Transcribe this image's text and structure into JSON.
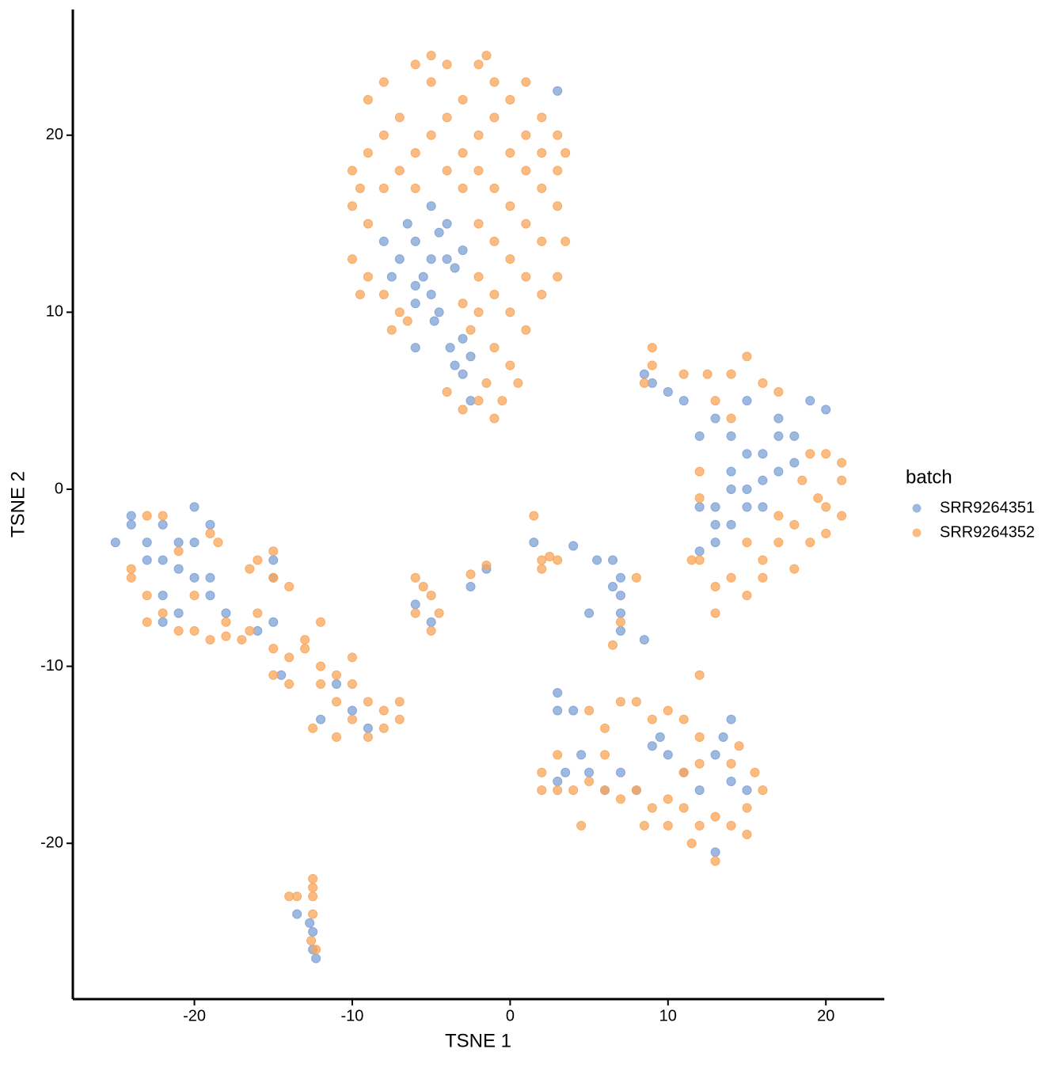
{
  "chart_data": {
    "type": "scatter",
    "xlabel": "TSNE 1",
    "ylabel": "TSNE 2",
    "legend_title": "batch",
    "legend": "right",
    "xlim": [
      -27.7,
      23.7
    ],
    "ylim": [
      -28.8,
      27.1
    ],
    "xticks": [
      -20,
      -10,
      0,
      10,
      20
    ],
    "yticks": [
      -20,
      -10,
      0,
      10,
      20
    ],
    "series": [
      {
        "name": "SRR9264351",
        "color": "#7ea1d6",
        "x": [
          -5,
          -6,
          -4,
          -5.5,
          -7,
          -6.5,
          -4.5,
          -3.5,
          -7.5,
          -5,
          -6,
          -4,
          -8,
          -3,
          -5,
          -6,
          -4.5,
          -4.8,
          -3.8,
          -3.5,
          -3,
          -3,
          -2.5,
          -6,
          -2.5,
          3,
          9,
          8.5,
          10,
          11,
          13,
          15,
          17,
          19,
          14,
          16,
          18,
          20,
          12,
          14,
          15,
          16,
          17,
          13,
          14,
          15,
          13,
          12,
          14,
          16,
          18,
          13,
          12,
          15,
          17,
          -25,
          -24,
          -23,
          -22,
          -21,
          -22,
          -20,
          -21,
          -24,
          -23,
          -20,
          -19,
          -22,
          -21,
          -22,
          -19,
          -18,
          -20,
          -19,
          -16,
          -15,
          -15,
          -14.5,
          -15,
          -11,
          -12,
          -10,
          -9,
          -2.5,
          -1.5,
          -5,
          -6,
          1.5,
          4,
          5,
          5.5,
          6.5,
          7,
          7,
          6.5,
          7,
          7,
          8.5,
          3,
          3,
          4,
          4.5,
          3,
          5,
          6,
          9,
          10,
          9.5,
          11,
          12,
          13,
          14,
          13.5,
          14,
          15,
          8,
          7,
          13,
          3.5,
          -12.5,
          -12.5,
          -12.3,
          -13.5,
          -12.7
        ],
        "values": [
          13,
          14,
          13,
          12,
          13,
          15,
          14.5,
          12.5,
          12,
          11,
          11.5,
          15,
          14,
          13.5,
          16,
          10.5,
          10,
          9.5,
          8,
          7,
          6.5,
          8.5,
          7.5,
          8,
          5,
          22.5,
          6,
          6.5,
          5.5,
          5,
          4,
          5,
          4,
          5,
          3,
          2,
          3,
          4.5,
          3,
          1,
          0,
          -1,
          1,
          -1,
          -2,
          -1,
          -3,
          -3.5,
          0,
          0.5,
          1.5,
          -2,
          -1,
          2,
          3,
          -3,
          -2,
          -3,
          -2,
          -3,
          -4,
          -3,
          -4.5,
          -1.5,
          -4,
          -5,
          -5,
          -6,
          -7,
          -7.5,
          -6,
          -7,
          -1,
          -2,
          -8,
          -4,
          -5,
          -10.5,
          -7.5,
          -11,
          -13,
          -12.5,
          -13.5,
          -5.5,
          -4.5,
          -7.5,
          -6.5,
          -3,
          -3.2,
          -7,
          -4,
          -4,
          -5,
          -6,
          -5.5,
          -7,
          -8,
          -8.5,
          -11.5,
          -12.5,
          -12.5,
          -15,
          -16.5,
          -16,
          -17,
          -14.5,
          -15,
          -14,
          -16,
          -17,
          -15,
          -16.5,
          -14,
          -13,
          -17,
          -17,
          -16,
          -20.5,
          -16,
          -25,
          -26,
          -26.5,
          -24,
          -24.5
        ]
      },
      {
        "name": "SRR9264352",
        "color": "#f9a55a",
        "x": [
          -9,
          -8,
          -7,
          -6,
          -5,
          -4,
          -3,
          -2,
          -1,
          0,
          1,
          2,
          3,
          3.5,
          -9,
          -8,
          -7,
          -6,
          -5,
          -4,
          -3,
          -2,
          -1,
          0,
          1,
          2,
          3,
          -9.5,
          -10,
          -8,
          -6,
          -4,
          -3,
          -2,
          -1,
          0,
          1,
          2,
          3.5,
          -9,
          -10,
          -9,
          -8,
          -7,
          -2,
          -1,
          0,
          1,
          2,
          3,
          -2,
          -1,
          0,
          1,
          -2,
          -1,
          0,
          -1.5,
          -2,
          -3,
          -1,
          -0.5,
          0.5,
          -4,
          -2.5,
          -3,
          -6.5,
          -7.5,
          -9.5,
          -10,
          1,
          2,
          3,
          -1.5,
          -5,
          8.5,
          9,
          9,
          11,
          12.5,
          14,
          15,
          16,
          17,
          13,
          14,
          19,
          20,
          21,
          21,
          20,
          21,
          20,
          18,
          17,
          16,
          15,
          14,
          13,
          12,
          13,
          15,
          16,
          18,
          19,
          11.5,
          12,
          12,
          17,
          18.5,
          19.5,
          -24,
          -23,
          -22,
          -21,
          -20,
          -19,
          -18,
          -17,
          -21,
          -23,
          -22,
          -19,
          -18.5,
          -16,
          -15,
          -16.5,
          -15,
          -14,
          -16,
          -15,
          -14,
          -13,
          -12,
          -11,
          -10,
          -9,
          -8,
          -7,
          -7,
          -8,
          -9,
          -10,
          -11,
          -12,
          -12.5,
          -11,
          -13,
          -12,
          -10,
          -14,
          -15,
          -16.5,
          -18,
          -20,
          -23,
          -24,
          -6,
          -5.5,
          -5,
          -6,
          -5,
          -4.5,
          -2.5,
          -1.5,
          1.5,
          2,
          2.5,
          2,
          3,
          6.5,
          7,
          8,
          3,
          2,
          2,
          3,
          4,
          5,
          6,
          7,
          8,
          9,
          10,
          11,
          12,
          13,
          14,
          15,
          16,
          15.5,
          14,
          12,
          11,
          10,
          9,
          8,
          7,
          6,
          5,
          6,
          11,
          12,
          11.5,
          13,
          12,
          4.5,
          14.5,
          10,
          8.5,
          15,
          -12.5,
          -12.5,
          -12.5,
          -13.5,
          -14,
          -12.6,
          -12.3,
          -12.5
        ],
        "values": [
          22,
          23,
          21,
          24,
          23,
          24,
          22,
          24,
          23,
          22,
          23,
          21,
          20,
          19,
          19,
          20,
          18,
          19,
          20,
          21,
          19,
          20,
          21,
          19,
          18,
          17,
          16,
          17,
          16,
          17,
          17,
          18,
          17,
          18,
          17,
          16,
          15,
          14,
          14,
          15,
          13,
          12,
          11,
          10,
          15,
          14,
          13,
          12,
          11,
          12,
          12,
          11,
          10,
          9,
          10,
          8,
          7,
          6,
          5,
          4.5,
          4,
          5,
          6,
          5.5,
          9,
          10.5,
          9.5,
          9,
          11,
          18,
          20,
          19,
          18,
          24.5,
          24.5,
          6,
          7,
          8,
          6.5,
          6.5,
          6.5,
          7.5,
          6,
          5.5,
          5,
          4,
          2,
          2,
          1.5,
          0.5,
          -1,
          -1.5,
          -2.5,
          -2,
          -3,
          -4,
          -3,
          -5,
          -5.5,
          -4,
          -7,
          -6,
          -5,
          -4.5,
          -3,
          -4,
          1,
          -0.5,
          -1.5,
          0.5,
          -0.5,
          -5,
          -6,
          -7,
          -8,
          -8,
          -8.5,
          -8.3,
          -8.5,
          -3.5,
          -1.5,
          -1.5,
          -2.5,
          -3,
          -4,
          -5,
          -4.5,
          -3.5,
          -5.5,
          -7,
          -9,
          -9.5,
          -9,
          -10,
          -10.5,
          -11,
          -12,
          -12.5,
          -12,
          -13,
          -13.5,
          -14,
          -13,
          -12,
          -11,
          -13.5,
          -14,
          -8.5,
          -7.5,
          -9.5,
          -11,
          -10.5,
          -8,
          -7.5,
          -6,
          -7.5,
          -4.5,
          -5,
          -5.5,
          -6,
          -7,
          -8,
          -7,
          -4.8,
          -4.3,
          -1.5,
          -4,
          -3.8,
          -4.5,
          -4,
          -8.8,
          -7.5,
          -5,
          -15,
          -16,
          -17,
          -17,
          -17,
          -16.5,
          -17,
          -17.5,
          -17,
          -18,
          -17.5,
          -18,
          -19,
          -18.5,
          -19,
          -18,
          -17,
          -16,
          -15.5,
          -14,
          -13,
          -12.5,
          -13,
          -12,
          -12,
          -13.5,
          -12.5,
          -15,
          -16,
          -15.5,
          -20,
          -21,
          -10.5,
          -19,
          -14.5,
          -19,
          -19,
          -19.5,
          -22,
          -23,
          -24,
          -23,
          -23,
          -25.5,
          -26,
          -22.5
        ]
      }
    ]
  }
}
